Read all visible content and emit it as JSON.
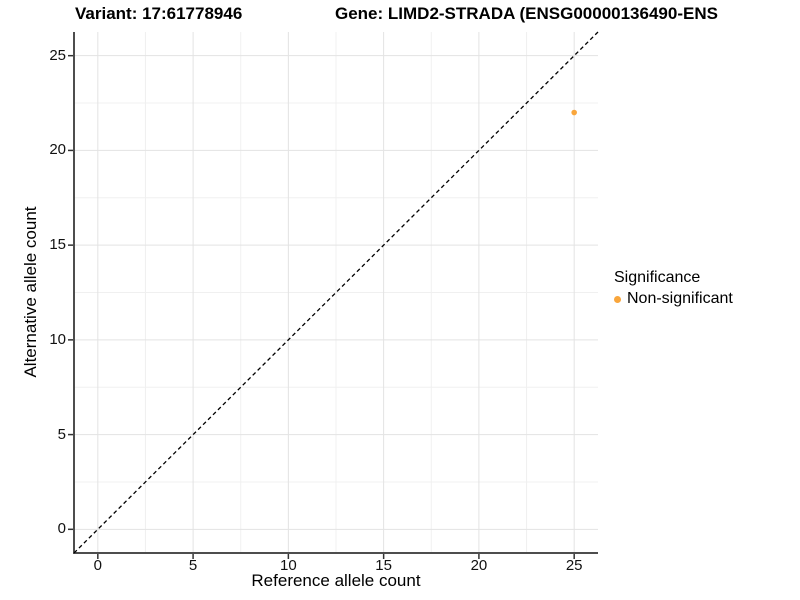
{
  "titles": {
    "variant": "Variant: 17:61778946",
    "gene": "Gene: LIMD2-STRADA (ENSG00000136490-ENS"
  },
  "chart_data": {
    "type": "scatter",
    "xlabel": "Reference allele count",
    "ylabel": "Alternative allele count",
    "xlim": [
      -1.25,
      26.25
    ],
    "ylim": [
      -1.25,
      26.25
    ],
    "x_ticks": [
      0,
      5,
      10,
      15,
      20,
      25
    ],
    "y_ticks": [
      0,
      5,
      10,
      15,
      20,
      25
    ],
    "grid": {
      "major": true,
      "minor": true
    },
    "series": [
      {
        "name": "Non-significant",
        "color": "#F9A63C",
        "points": [
          {
            "x": 25,
            "y": 22
          }
        ]
      }
    ],
    "reference_line": {
      "type": "identity",
      "slope": 1,
      "intercept": 0,
      "style": "dashed",
      "color": "#000000"
    },
    "legend": {
      "title": "Significance",
      "position": "right",
      "entries": [
        {
          "label": "Non-significant",
          "color": "#F9A63C"
        }
      ]
    }
  },
  "colors": {
    "grid_major": "#e3e3e3",
    "grid_minor": "#f0f0f0",
    "axis_line": "#4d4d4d",
    "tick_mark": "#333333",
    "background": "#ffffff"
  }
}
